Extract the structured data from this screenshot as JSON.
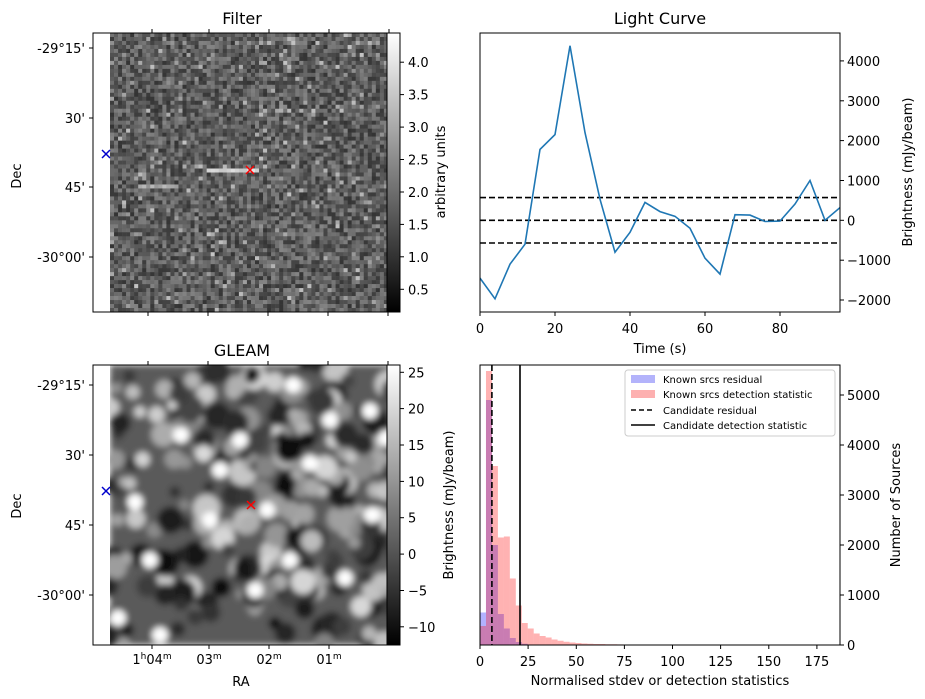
{
  "colors": {
    "line": "#1f77b4",
    "known_residual": "#b3b3fb",
    "known_detection": "#fdb0b0",
    "candidate_marker": "#ff0000",
    "gleam_marker": "#0000cc"
  },
  "chart_data": [
    {
      "id": "filter",
      "type": "heatmap",
      "title": "Filter",
      "ylabel": "Dec",
      "xlabel": "",
      "yticklabels": [
        "-29°15'",
        "30'",
        "45'",
        "-30°00'"
      ],
      "colorbar": {
        "label": "arbitrary units",
        "ticks": [
          0.5,
          1.0,
          1.5,
          2.0,
          2.5,
          3.0,
          3.5,
          4.0
        ],
        "ticklabels": [
          "0.5",
          "1.0",
          "1.5",
          "2.0",
          "2.5",
          "3.0",
          "3.5",
          "4.0"
        ],
        "range": [
          0.15,
          4.45
        ]
      },
      "markers": [
        {
          "label": "candidate",
          "symbol": "x",
          "color": "red"
        },
        {
          "label": "source",
          "symbol": "x",
          "color": "blue"
        }
      ]
    },
    {
      "id": "light_curve",
      "type": "line",
      "title": "Light Curve",
      "xlabel": "Time (s)",
      "ylabel": "Brightness (mJy/beam)",
      "xlim": [
        0,
        96
      ],
      "ylim": [
        -2300,
        4700
      ],
      "xticks": [
        0,
        20,
        40,
        60,
        80
      ],
      "xticklabels": [
        "0",
        "20",
        "40",
        "60",
        "80"
      ],
      "yticks": [
        -2000,
        -1000,
        0,
        1000,
        2000,
        3000,
        4000
      ],
      "yticklabels": [
        "−2000",
        "−1000",
        "0",
        "1000",
        "2000",
        "3000",
        "4000"
      ],
      "series": [
        {
          "name": "light curve",
          "x": [
            0,
            4,
            8,
            12,
            16,
            20,
            24,
            28,
            32,
            36,
            40,
            44,
            48,
            52,
            56,
            60,
            64,
            68,
            72,
            76,
            80,
            84,
            88,
            92,
            96
          ],
          "y": [
            -1450,
            -1970,
            -1100,
            -600,
            1780,
            2150,
            4380,
            2200,
            530,
            -800,
            -300,
            450,
            220,
            100,
            -200,
            -950,
            -1350,
            140,
            130,
            -30,
            -20,
            410,
            1000,
            0,
            320
          ]
        }
      ],
      "hlines": [
        {
          "y": 570,
          "style": "dashed"
        },
        {
          "y": 0,
          "style": "dashed"
        },
        {
          "y": -570,
          "style": "dashed"
        }
      ]
    },
    {
      "id": "gleam",
      "type": "heatmap",
      "title": "GLEAM",
      "ylabel": "Dec",
      "xlabel": "RA",
      "yticklabels": [
        "-29°15'",
        "30'",
        "45'",
        "-30°00'"
      ],
      "xticklabels": [
        {
          "main": "1",
          "sup1": "h",
          "mid": "04",
          "sup2": "m"
        },
        {
          "main": "03",
          "sup1": "",
          "mid": "",
          "sup2": "m"
        },
        {
          "main": "02",
          "sup1": "",
          "mid": "",
          "sup2": "m"
        },
        {
          "main": "01",
          "sup1": "",
          "mid": "",
          "sup2": "m"
        }
      ],
      "colorbar": {
        "label": "Brightness (mJy/beam)",
        "ticks": [
          -10,
          -5,
          0,
          5,
          10,
          15,
          20,
          25
        ],
        "ticklabels": [
          "−10",
          "−5",
          "0",
          "5",
          "10",
          "15",
          "20",
          "25"
        ],
        "range": [
          -12.5,
          26
        ]
      },
      "markers": [
        {
          "label": "candidate",
          "symbol": "x",
          "color": "red"
        },
        {
          "label": "source",
          "symbol": "x",
          "color": "blue"
        }
      ]
    },
    {
      "id": "histogram",
      "type": "bar",
      "title": "",
      "xlabel": "Normalised stdev or detection statistics",
      "ylabel": "Number of Sources",
      "xlim": [
        0,
        187
      ],
      "ylim": [
        0,
        5600
      ],
      "xticks": [
        0,
        25,
        50,
        75,
        100,
        125,
        150,
        175
      ],
      "xticklabels": [
        "0",
        "25",
        "50",
        "75",
        "100",
        "125",
        "150",
        "175"
      ],
      "yticks": [
        0,
        1000,
        2000,
        3000,
        4000,
        5000
      ],
      "yticklabels": [
        "0",
        "1000",
        "2000",
        "3000",
        "4000",
        "5000"
      ],
      "bin_width": 3.1,
      "series": [
        {
          "name": "Known srcs residual",
          "start": 0,
          "values": [
            650,
            4900,
            2000,
            620,
            330,
            140,
            60,
            25,
            10
          ]
        },
        {
          "name": "Known srcs detection statistic",
          "start": 0,
          "values": [
            380,
            5480,
            3580,
            2150,
            2170,
            1330,
            790,
            440,
            330,
            230,
            180,
            150,
            110,
            85,
            65,
            50,
            40,
            30,
            25,
            20,
            20,
            15,
            15,
            12,
            10,
            10,
            8,
            8,
            6,
            6,
            5,
            5,
            5,
            4,
            4,
            3,
            3,
            3,
            3,
            3,
            3,
            3,
            3,
            3,
            3,
            3,
            3,
            2,
            2,
            2,
            2,
            2,
            2,
            2,
            2,
            2,
            2,
            2,
            2,
            2
          ]
        }
      ],
      "vlines": [
        {
          "name": "Candidate residual",
          "x": 6.2,
          "style": "dashed"
        },
        {
          "name": "Candidate detection statistic",
          "x": 20.8,
          "style": "solid"
        }
      ],
      "legend": {
        "position": "top-right",
        "entries": [
          "Known srcs residual",
          "Known srcs detection statistic",
          "Candidate residual",
          "Candidate detection statistic"
        ]
      }
    }
  ]
}
